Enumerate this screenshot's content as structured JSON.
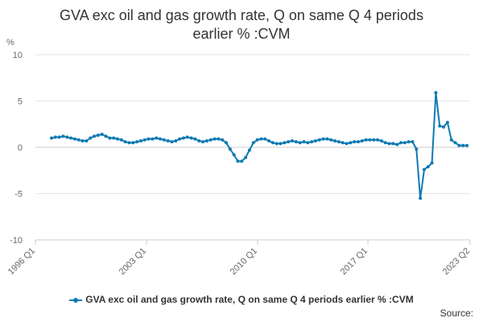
{
  "chart_data": {
    "type": "line",
    "title": "GVA exc oil and gas growth rate, Q on same Q 4 periods earlier % :CVM",
    "title_lines": [
      "GVA exc oil and gas growth rate, Q on same Q 4 periods",
      "earlier % :CVM"
    ],
    "ylabel": "%",
    "ylim": [
      -10,
      10
    ],
    "yticks": [
      10,
      5,
      0,
      -5,
      -10
    ],
    "xtick_labels": [
      "1996 Q1",
      "2003 Q1",
      "2010 Q1",
      "2017 Q1",
      "2023 Q2"
    ],
    "grid": true,
    "legend": "bottom",
    "source": "Source:",
    "color": "#0f7ab3",
    "series": [
      {
        "name": "GVA exc oil and gas growth rate, Q on same Q 4 periods earlier % :CVM",
        "values": [
          1.0,
          1.1,
          1.1,
          1.2,
          1.1,
          1.0,
          0.9,
          0.8,
          0.7,
          0.7,
          1.0,
          1.2,
          1.3,
          1.4,
          1.2,
          1.0,
          1.0,
          0.9,
          0.8,
          0.6,
          0.5,
          0.5,
          0.6,
          0.7,
          0.8,
          0.9,
          0.9,
          1.0,
          0.9,
          0.8,
          0.7,
          0.6,
          0.7,
          0.9,
          1.0,
          1.1,
          1.0,
          0.9,
          0.7,
          0.6,
          0.7,
          0.8,
          0.9,
          0.9,
          0.8,
          0.5,
          -0.2,
          -0.8,
          -1.5,
          -1.5,
          -1.1,
          -0.3,
          0.5,
          0.8,
          0.9,
          0.9,
          0.7,
          0.5,
          0.4,
          0.4,
          0.5,
          0.6,
          0.7,
          0.6,
          0.5,
          0.6,
          0.5,
          0.6,
          0.7,
          0.8,
          0.9,
          0.9,
          0.8,
          0.7,
          0.6,
          0.5,
          0.4,
          0.5,
          0.6,
          0.6,
          0.7,
          0.8,
          0.8,
          0.8,
          0.8,
          0.7,
          0.5,
          0.4,
          0.4,
          0.3,
          0.5,
          0.5,
          0.6,
          0.6,
          -0.2,
          -5.5,
          -2.4,
          -2.1,
          -1.7,
          5.9,
          2.3,
          2.2,
          2.7,
          0.8,
          0.5,
          0.2,
          0.2,
          0.2
        ]
      }
    ]
  }
}
